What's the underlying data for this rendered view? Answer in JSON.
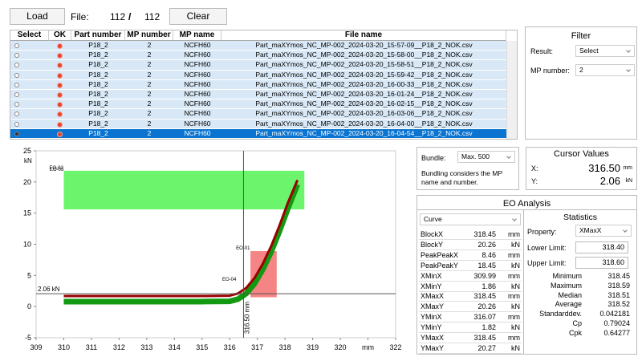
{
  "toolbar": {
    "load": "Load",
    "file_label": "File:",
    "file_index": "112",
    "separator": "/",
    "file_count": "112",
    "clear": "Clear"
  },
  "table": {
    "columns": [
      "Select",
      "OK",
      "Part number",
      "MP number",
      "MP name",
      "File name"
    ],
    "selected_row": 9,
    "rows": [
      [
        "P18_2",
        "2",
        "NCFH60",
        "Part_maXYmos_NC_MP-002_2024-03-20_15-57-09__P18_2_NOK.csv"
      ],
      [
        "P18_2",
        "2",
        "NCFH60",
        "Part_maXYmos_NC_MP-002_2024-03-20_15-58-00__P18_2_NOK.csv"
      ],
      [
        "P18_2",
        "2",
        "NCFH60",
        "Part_maXYmos_NC_MP-002_2024-03-20_15-58-51__P18_2_NOK.csv"
      ],
      [
        "P18_2",
        "2",
        "NCFH60",
        "Part_maXYmos_NC_MP-002_2024-03-20_15-59-42__P18_2_NOK.csv"
      ],
      [
        "P18_2",
        "2",
        "NCFH60",
        "Part_maXYmos_NC_MP-002_2024-03-20_16-00-33__P18_2_NOK.csv"
      ],
      [
        "P18_2",
        "2",
        "NCFH60",
        "Part_maXYmos_NC_MP-002_2024-03-20_16-01-24__P18_2_NOK.csv"
      ],
      [
        "P18_2",
        "2",
        "NCFH60",
        "Part_maXYmos_NC_MP-002_2024-03-20_16-02-15__P18_2_NOK.csv"
      ],
      [
        "P18_2",
        "2",
        "NCFH60",
        "Part_maXYmos_NC_MP-002_2024-03-20_16-03-06__P18_2_NOK.csv"
      ],
      [
        "P18_2",
        "2",
        "NCFH60",
        "Part_maXYmos_NC_MP-002_2024-03-20_16-04-00__P18_2_NOK.csv"
      ],
      [
        "P18_2",
        "2",
        "NCFH60",
        "Part_maXYmos_NC_MP-002_2024-03-20_16-04-54__P18_2_NOK.csv"
      ]
    ]
  },
  "filter": {
    "title": "Filter",
    "result_label": "Result:",
    "result_value": "Select",
    "mp_label": "MP number:",
    "mp_value": "2"
  },
  "bundle": {
    "label": "Bundle:",
    "value": "Max. 500",
    "note": "Bundling considers the MP name and number."
  },
  "cursor": {
    "title": "Cursor Values",
    "x_label": "X:",
    "x_value": "316.50",
    "x_unit": "mm",
    "y_label": "Y:",
    "y_value": "2.06",
    "y_unit": "kN"
  },
  "eo_analysis": {
    "title": "EO Analysis",
    "curve_select": "Curve",
    "results": [
      [
        "BlockX",
        "318.45",
        "mm"
      ],
      [
        "BlockY",
        "20.26",
        "kN"
      ],
      [
        "PeakPeakX",
        "8.46",
        "mm"
      ],
      [
        "PeakPeakY",
        "18.45",
        "kN"
      ],
      [
        "XMinX",
        "309.99",
        "mm"
      ],
      [
        "XMinY",
        "1.86",
        "kN"
      ],
      [
        "XMaxX",
        "318.45",
        "mm"
      ],
      [
        "XMaxY",
        "20.26",
        "kN"
      ],
      [
        "YMinX",
        "316.07",
        "mm"
      ],
      [
        "YMinY",
        "1.82",
        "kN"
      ],
      [
        "YMaxX",
        "318.45",
        "mm"
      ],
      [
        "YMaxY",
        "20.27",
        "kN"
      ]
    ],
    "statistics": {
      "title": "Statistics",
      "property_label": "Property:",
      "property_value": "XMaxX",
      "lower_label": "Lower Limit:",
      "lower_value": "318.40",
      "upper_label": "Upper Limit:",
      "upper_value": "318.60",
      "rows": [
        [
          "Minimum",
          "318.45"
        ],
        [
          "Maximum",
          "318.59"
        ],
        [
          "Median",
          "318.51"
        ],
        [
          "Average",
          "318.52"
        ],
        [
          "Standarddev.",
          "0.042181"
        ],
        [
          "Cp",
          "0.79024"
        ],
        [
          "Cpk",
          "0.64277"
        ]
      ]
    }
  },
  "chart_data": {
    "type": "line",
    "y_unit": "kN",
    "x": [
      310,
      315,
      316,
      316.3,
      316.6,
      316.9,
      317.2,
      317.5,
      317.8,
      318.1,
      318.45
    ],
    "series": [
      {
        "color": "#119a11",
        "values": [
          0.8,
          0.8,
          0.85,
          1.2,
          2.1,
          3.7,
          6.0,
          8.8,
          12.1,
          15.7,
          19.6
        ]
      },
      {
        "color": "#9a0000",
        "values": [
          1.7,
          1.7,
          1.75,
          2.1,
          3.0,
          4.6,
          6.9,
          9.7,
          13.0,
          16.6,
          20.3
        ]
      }
    ],
    "xlim": [
      309,
      322
    ],
    "xticks": [
      309,
      310,
      311,
      312,
      313,
      314,
      315,
      316,
      317,
      318,
      319,
      320,
      {
        "value": 321,
        "label": "mm"
      },
      322
    ],
    "ylim": [
      -5,
      25
    ],
    "yticks": [
      -5,
      0,
      5,
      10,
      15,
      20,
      25
    ],
    "windows": [
      {
        "label": "EO-02",
        "x": [
          310,
          318.7
        ],
        "y": [
          15.6,
          21.8
        ],
        "color": "#3cf03c"
      },
      {
        "label": "EO-01",
        "x": [
          316.75,
          317.7
        ],
        "y": [
          1.5,
          8.9
        ],
        "color": "#f25c5c"
      }
    ],
    "annotations": [
      "EO-03",
      "EO-04"
    ],
    "cursor": {
      "x": 316.5,
      "x_label": "316.50 mm",
      "y": 2.06,
      "y_label": "2.06 kN"
    }
  }
}
